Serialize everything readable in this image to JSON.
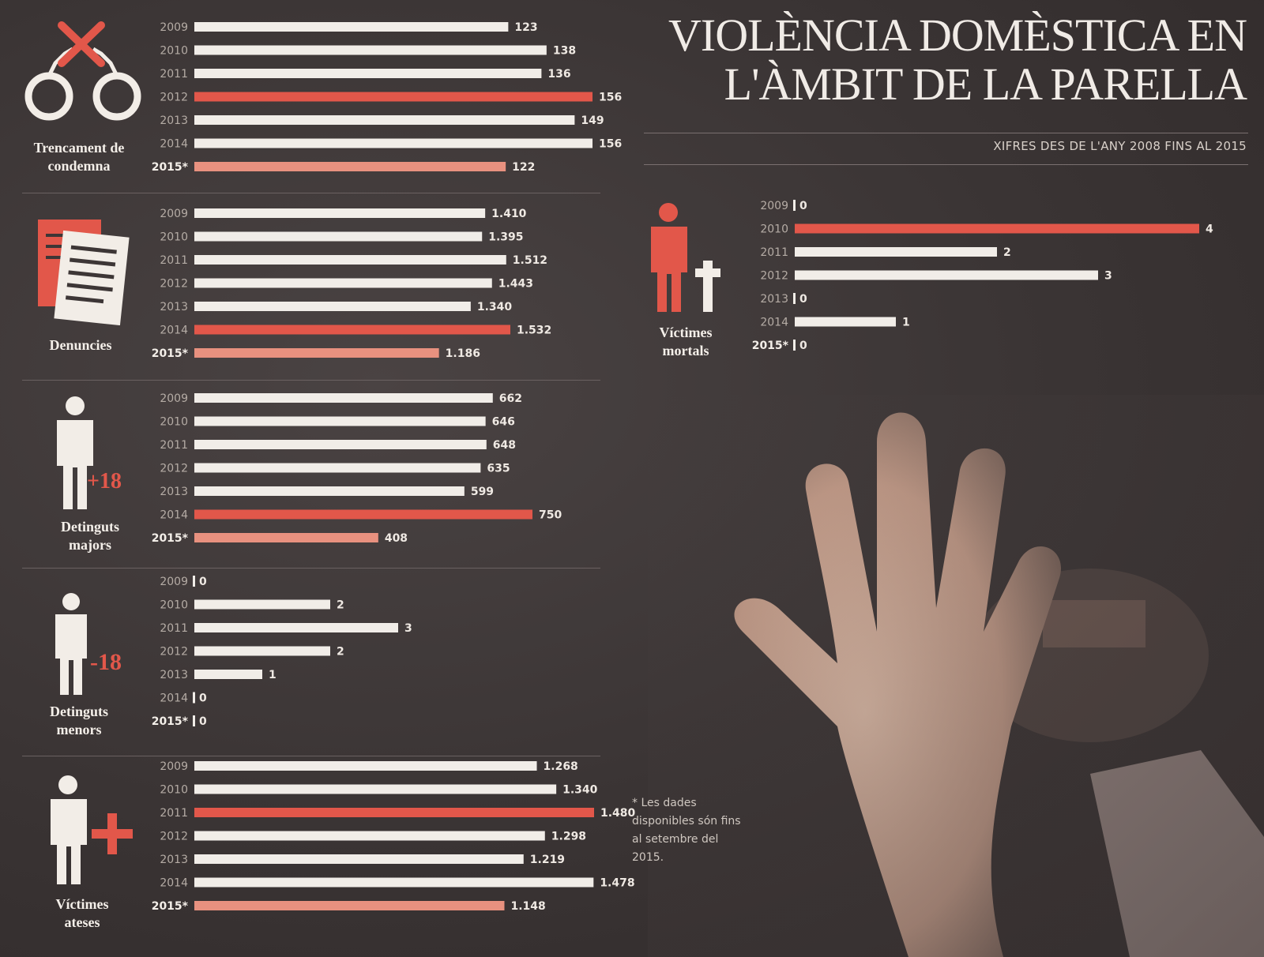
{
  "header": {
    "title_line1": "VIOLÈNCIA DOMÈSTICA EN",
    "title_line2": "L'ÀMBIT DE LA PARELLA",
    "subtitle": "XIFRES DES DE L'ANY 2008 FINS AL 2015"
  },
  "footnote": "* Les dades disponibles són fins al setembre del 2015.",
  "colors": {
    "white_bar": "#f1ede8",
    "red_bar": "#e2574a",
    "pale_red_bar": "#e8917f",
    "text": "#e8e2dc"
  },
  "icons": [
    "handcuffs-icon",
    "documents-icon",
    "person-plus18-icon",
    "person-minus18-icon",
    "person-cross-icon",
    "person-plus-icon"
  ],
  "chart_data": [
    {
      "type": "bar",
      "label_lines": [
        "Trencament de",
        "condemna"
      ],
      "categories": [
        "2009",
        "2010",
        "2011",
        "2012",
        "2013",
        "2014",
        "2015*"
      ],
      "values": [
        123,
        138,
        136,
        156,
        149,
        156,
        122
      ],
      "value_labels": [
        "123",
        "138",
        "136",
        "156",
        "149",
        "156",
        "122"
      ],
      "highlight": [
        null,
        null,
        null,
        "red",
        null,
        null,
        "pale"
      ]
    },
    {
      "type": "bar",
      "label_lines": [
        "Denuncies"
      ],
      "categories": [
        "2009",
        "2010",
        "2011",
        "2012",
        "2013",
        "2014",
        "2015*"
      ],
      "values": [
        1410,
        1395,
        1512,
        1443,
        1340,
        1532,
        1186
      ],
      "value_labels": [
        "1.410",
        "1.395",
        "1.512",
        "1.443",
        "1.340",
        "1.532",
        "1.186"
      ],
      "highlight": [
        null,
        null,
        null,
        null,
        null,
        "red",
        "pale"
      ]
    },
    {
      "type": "bar",
      "label_lines": [
        "Detinguts",
        "majors"
      ],
      "badge": "+18",
      "categories": [
        "2009",
        "2010",
        "2011",
        "2012",
        "2013",
        "2014",
        "2015*"
      ],
      "values": [
        662,
        646,
        648,
        635,
        599,
        750,
        408
      ],
      "value_labels": [
        "662",
        "646",
        "648",
        "635",
        "599",
        "750",
        "408"
      ],
      "highlight": [
        null,
        null,
        null,
        null,
        null,
        "red",
        "pale"
      ]
    },
    {
      "type": "bar",
      "label_lines": [
        "Detinguts",
        "menors"
      ],
      "badge": "-18",
      "categories": [
        "2009",
        "2010",
        "2011",
        "2012",
        "2013",
        "2014",
        "2015*"
      ],
      "values": [
        0,
        2,
        3,
        2,
        1,
        0,
        0
      ],
      "value_labels": [
        "0",
        "2",
        "3",
        "2",
        "1",
        "0",
        "0"
      ],
      "highlight": [
        null,
        null,
        null,
        null,
        null,
        null,
        null
      ]
    },
    {
      "type": "bar",
      "label_lines": [
        "Víctimes",
        "ateses"
      ],
      "categories": [
        "2009",
        "2010",
        "2011",
        "2012",
        "2013",
        "2014",
        "2015*"
      ],
      "values": [
        1268,
        1340,
        1480,
        1298,
        1219,
        1478,
        1148
      ],
      "value_labels": [
        "1.268",
        "1.340",
        "1.480",
        "1.298",
        "1.219",
        "1.478",
        "1.148"
      ],
      "highlight": [
        null,
        null,
        "red",
        null,
        null,
        null,
        "pale"
      ]
    },
    {
      "type": "bar",
      "label_lines": [
        "Víctimes",
        "mortals"
      ],
      "categories": [
        "2009",
        "2010",
        "2011",
        "2012",
        "2013",
        "2014",
        "2015*"
      ],
      "values": [
        0,
        4,
        2,
        3,
        0,
        1,
        0
      ],
      "value_labels": [
        "0",
        "4",
        "2",
        "3",
        "0",
        "1",
        "0"
      ],
      "highlight": [
        null,
        "red",
        null,
        null,
        null,
        null,
        null
      ]
    }
  ]
}
